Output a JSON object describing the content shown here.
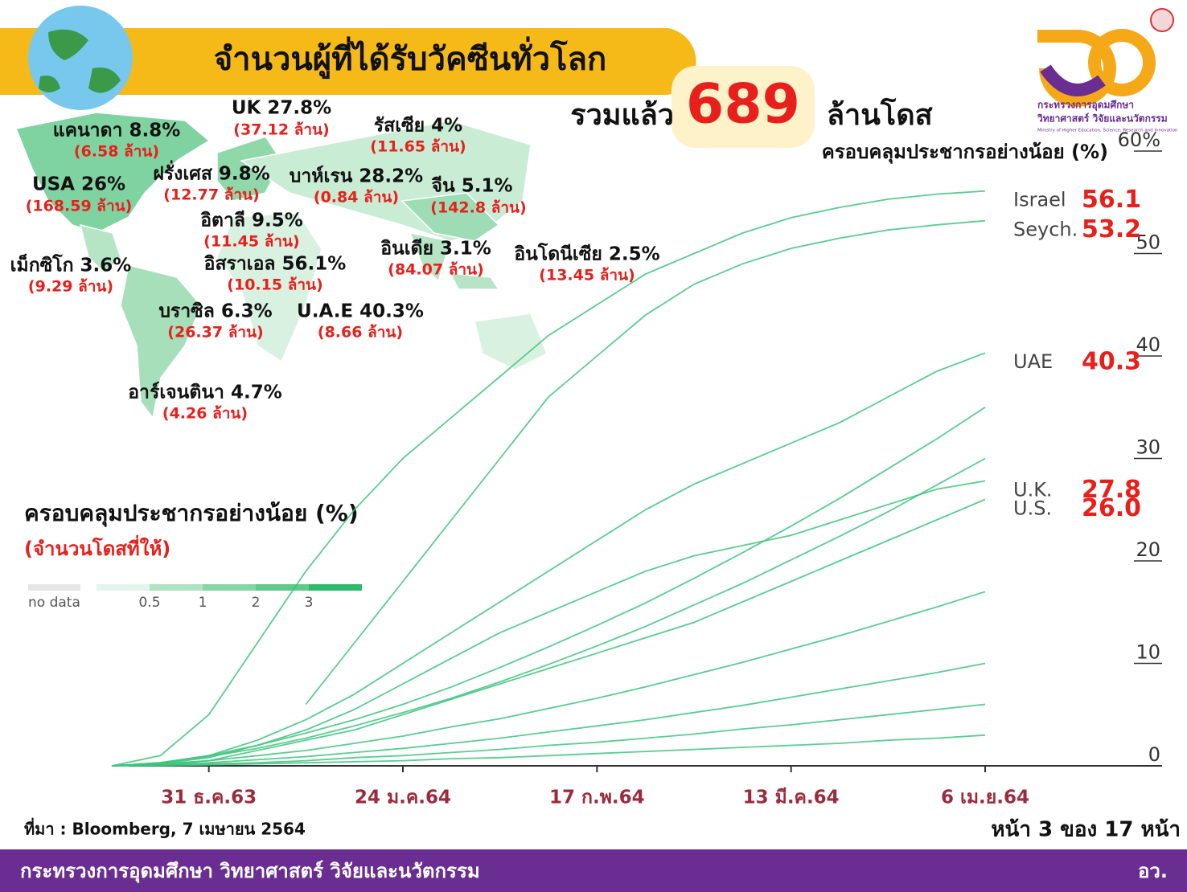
{
  "header": {
    "title": "จำนวนผู้ที่ได้รับวัคซีนทั่วโลก",
    "total_prefix": "รวมแล้ว",
    "total": 689,
    "total_suffix": "ล้านโดส"
  },
  "logo": {
    "line1": "กระทรวงการอุดมศึกษา",
    "line2": "วิทยาศาสตร์ วิจัยและนวัตกรรม",
    "line3": "Ministry of Higher Education, Science, Research and Innovation"
  },
  "map": {
    "labels": [
      {
        "label": "UK 27.8%",
        "amount": "(37.12 ล้าน)"
      },
      {
        "label": "แคนาดา 8.8%",
        "amount": "(6.58 ล้าน)"
      },
      {
        "label": "รัสเซีย 4%",
        "amount": "(11.65 ล้าน)"
      },
      {
        "label": "USA 26%",
        "amount": "(168.59 ล้าน)"
      },
      {
        "label": "ฝรั่งเศส 9.8%",
        "amount": "(12.77 ล้าน)"
      },
      {
        "label": "บาห์เรน 28.2%",
        "amount": "(0.84 ล้าน)"
      },
      {
        "label": "จีน 5.1%",
        "amount": "(142.8 ล้าน)"
      },
      {
        "label": "อิตาลี 9.5%",
        "amount": "(11.45 ล้าน)"
      },
      {
        "label": "เม็กซิโก 3.6%",
        "amount": "(9.29 ล้าน)"
      },
      {
        "label": "อิสราเอล 56.1%",
        "amount": "(10.15 ล้าน)"
      },
      {
        "label": "อินเดีย 3.1%",
        "amount": "(84.07 ล้าน)"
      },
      {
        "label": "อินโดนีเซีย 2.5%",
        "amount": "(13.45 ล้าน)"
      },
      {
        "label": "บราซิล 6.3%",
        "amount": "(26.37 ล้าน)"
      },
      {
        "label": "U.A.E 40.3%",
        "amount": "(8.66 ล้าน)"
      },
      {
        "label": "อาร์เจนตินา 4.7%",
        "amount": "(4.26 ล้าน)"
      }
    ],
    "legend": {
      "title": "ครอบคลุมประชากรอย่างน้อย (%)",
      "subtitle": "(จำนวนโดสที่ให้)",
      "no_data": "no data",
      "ticks": [
        "0.5",
        "1",
        "2",
        "3"
      ]
    }
  },
  "chart_data": {
    "type": "line",
    "title": "ครอบคลุมประชากรอย่างน้อย (%)",
    "categories": [
      null,
      null,
      "31 ธ.ค.63",
      null,
      null,
      null,
      "24 ม.ค.64",
      null,
      null,
      null,
      "17 ก.พ.64",
      null,
      null,
      null,
      "13 มี.ค.64",
      null,
      null,
      null,
      "6 เม.ย.64"
    ],
    "ylim": [
      0,
      60
    ],
    "yticks": [
      0,
      10,
      20,
      30,
      40,
      50,
      {
        "value": 60,
        "label": "60%"
      }
    ],
    "grid": false,
    "series": [
      {
        "name": "Israel",
        "color": "#3cc47c",
        "values": [
          0,
          1,
          5,
          12,
          19,
          25,
          30,
          34,
          38,
          42,
          45,
          48,
          50,
          52,
          53.5,
          54.5,
          55.3,
          55.8,
          56.1
        ]
      },
      {
        "name": "Seych.",
        "color": "#3cc47c",
        "values": [
          null,
          null,
          null,
          null,
          6,
          12,
          18,
          24,
          30,
          36,
          40,
          44,
          47,
          49,
          50.5,
          51.5,
          52.3,
          52.8,
          53.2
        ]
      },
      {
        "name": "UAE",
        "color": "#3cc47c",
        "values": [
          0,
          0.3,
          1,
          2.5,
          4.5,
          7,
          10,
          13,
          16,
          19,
          22,
          25,
          27.5,
          29.5,
          31.5,
          33.5,
          36,
          38.5,
          40.3
        ]
      },
      {
        "name": "U.K.",
        "color": "#3cc47c",
        "values": [
          0,
          0.2,
          0.8,
          2,
          3.5,
          5.5,
          8,
          10.5,
          13,
          15,
          17,
          19,
          20.5,
          21.5,
          22.5,
          24,
          25.5,
          27,
          27.8
        ]
      },
      {
        "name": "U.S.",
        "color": "#3cc47c",
        "values": [
          0,
          0.1,
          0.5,
          1.5,
          2.5,
          3.5,
          5,
          6.5,
          8,
          9.5,
          11,
          12.5,
          14,
          16,
          18,
          20,
          22,
          24,
          26
        ],
        "value_labels": [
          null,
          null,
          null,
          null,
          null,
          null,
          null,
          null,
          null,
          null,
          null,
          null,
          null,
          null,
          null,
          null,
          null,
          null,
          "26.0"
        ]
      },
      {
        "color": "#3cc47c",
        "values": [
          0,
          0.3,
          1,
          2,
          3.2,
          4.5,
          6,
          7.7,
          9.6,
          11.6,
          13.7,
          15.9,
          18.3,
          20.8,
          23.4,
          26.1,
          29,
          31.9,
          35
        ]
      },
      {
        "color": "#3cc47c",
        "values": [
          0,
          0.3,
          0.9,
          1.7,
          2.7,
          3.9,
          5.2,
          6.6,
          8.2,
          9.9,
          11.7,
          13.6,
          15.7,
          17.8,
          20.1,
          22.4,
          24.8,
          27.4,
          30
        ]
      },
      {
        "color": "#3cc47c",
        "values": [
          0,
          0.2,
          0.5,
          1,
          1.5,
          2.2,
          2.9,
          3.8,
          4.6,
          5.6,
          6.6,
          7.7,
          8.9,
          10.1,
          11.4,
          12.7,
          14.1,
          15.5,
          17
        ]
      },
      {
        "color": "#3cc47c",
        "values": [
          0,
          0.1,
          0.3,
          0.6,
          0.9,
          1.3,
          1.7,
          2.2,
          2.7,
          3.3,
          3.9,
          4.5,
          5.2,
          5.9,
          6.7,
          7.5,
          8.3,
          9.1,
          10
        ]
      },
      {
        "color": "#3cc47c",
        "values": [
          0,
          0.1,
          0.2,
          0.3,
          0.5,
          0.8,
          1,
          1.3,
          1.6,
          2,
          2.3,
          2.7,
          3.1,
          3.6,
          4,
          4.5,
          5,
          5.5,
          6
        ]
      },
      {
        "color": "#3cc47c",
        "values": [
          0,
          0,
          0.1,
          0.2,
          0.3,
          0.4,
          0.5,
          0.7,
          0.8,
          1,
          1.2,
          1.4,
          1.6,
          1.8,
          2,
          2.2,
          2.5,
          2.7,
          3
        ]
      }
    ]
  },
  "source": "ที่มา : Bloomberg, 7 เมษายน 2564",
  "page": "หน้า 3 ของ 17 หน้า",
  "footer": {
    "ministry": "กระทรวงการอุดมศึกษา วิทยาศาสตร์ วิจัยและนวัตกรรม",
    "abbr": "อว."
  }
}
